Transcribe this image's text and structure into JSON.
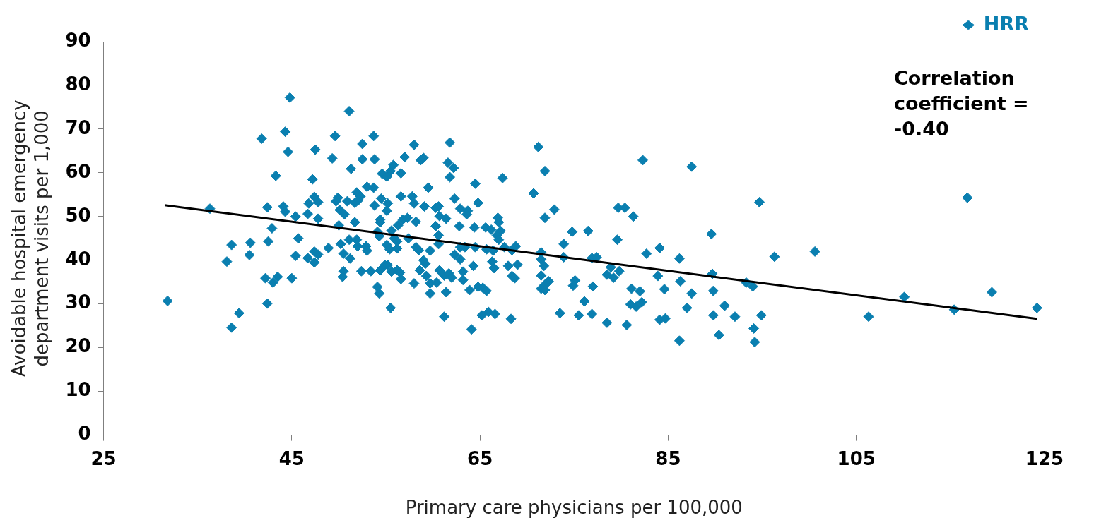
{
  "chart_data": {
    "type": "scatter",
    "xlabel": "Primary care physicians per 100,000",
    "ylabel": "Avoidable hospital emergency department visits per 1,000",
    "xlim": [
      25,
      125
    ],
    "xticks": [
      25,
      45,
      65,
      85,
      105,
      125
    ],
    "ylim": [
      0,
      90
    ],
    "yticks": [
      0,
      10,
      20,
      30,
      40,
      50,
      60,
      70,
      80,
      90
    ],
    "grid": false,
    "legend": "top right",
    "marker": "diamond",
    "annotations": [
      "Correlation coefficient = -0.40"
    ],
    "series": [
      {
        "name": "HRR",
        "color": "#0a7fb0",
        "x": [
          44.8,
          51.1,
          44.3,
          41.8,
          49.6,
          52.5,
          44.6,
          47.5,
          49.3,
          52.5,
          51.3,
          43.3,
          47.2,
          53.0,
          51.9,
          52.3,
          47.4,
          47.8,
          46.8,
          49.9,
          49.7,
          50.9,
          51.7,
          52.1,
          42.4,
          44.1,
          44.3,
          36.3,
          46.7,
          45.4,
          47.8,
          50.1,
          50.6,
          51.7,
          50.0,
          42.9,
          45.7,
          38.6,
          40.6,
          42.5,
          51.1,
          51.9,
          52.0,
          52.9,
          50.2,
          48.9,
          38.1,
          40.5,
          45.4,
          46.7,
          47.4,
          47.8,
          47.4,
          50.5,
          51.2,
          52.4,
          50.5,
          50.4,
          42.2,
          43.5,
          43.0,
          45.0,
          31.8,
          42.4,
          39.4,
          38.6,
          53.7,
          53.8,
          58.0,
          61.8,
          57.0,
          58.7,
          59.0,
          61.6,
          62.2,
          55.8,
          55.5,
          54.6,
          55.1,
          56.6,
          61.8,
          67.4,
          59.5,
          64.5,
          53.7,
          54.5,
          55.2,
          56.6,
          57.8,
          58.0,
          59.1,
          62.3,
          64.8,
          53.8,
          55.1,
          60.3,
          60.6,
          62.9,
          63.7,
          63.6,
          60.7,
          61.4,
          54.4,
          54.4,
          56.8,
          57.3,
          58.2,
          60.3,
          62.8,
          64.4,
          65.6,
          66.2,
          66.9,
          67.0,
          67.2,
          66.8,
          67.0,
          56.3,
          55.6,
          54.1,
          54.3,
          55.9,
          56.2,
          57.4,
          60.6,
          60.6,
          53.0,
          55.1,
          55.4,
          56.2,
          58.2,
          58.5,
          59.7,
          62.3,
          62.9,
          63.4,
          64.5,
          65.7,
          66.4,
          67.6,
          68.4,
          59.0,
          59.2,
          62.9,
          64.3,
          66.3,
          66.5,
          68.0,
          68.4,
          53.4,
          54.4,
          54.9,
          55.2,
          55.6,
          56.2,
          56.5,
          56.6,
          58.6,
          59.3,
          59.7,
          60.4,
          60.7,
          61.2,
          61.7,
          62.0,
          63.2,
          63.2,
          63.9,
          64.8,
          65.3,
          65.7,
          58.0,
          54.1,
          54.3,
          59.7,
          61.4,
          55.5,
          61.2,
          64.1,
          65.2,
          65.9,
          66.6,
          68.3,
          71.2,
          71.9,
          82.3,
          87.5,
          70.7,
          72.9,
          71.9,
          79.7,
          80.4,
          81.3,
          74.8,
          76.5,
          73.9,
          89.6,
          79.6,
          68.8,
          71.5,
          71.5,
          71.8,
          69.0,
          73.9,
          76.9,
          77.4,
          82.7,
          84.1,
          86.2,
          78.9,
          79.8,
          78.5,
          79.2,
          83.9,
          86.3,
          89.7,
          68.7,
          71.5,
          72.3,
          71.9,
          71.5,
          71.9,
          75.1,
          74.9,
          77.0,
          81.1,
          82.0,
          84.6,
          87.5,
          89.8,
          93.3,
          94.0,
          76.1,
          81.0,
          81.6,
          82.2,
          87.0,
          91.0,
          73.5,
          75.5,
          76.9,
          78.5,
          80.6,
          84.1,
          84.7,
          89.8,
          92.1,
          90.4,
          86.2,
          94.1,
          94.2,
          94.7,
          100.6,
          96.3,
          116.8,
          110.1,
          119.4,
          115.4,
          124.2,
          94.9,
          106.3
        ],
        "values": [
          77.2,
          74.1,
          69.4,
          67.8,
          68.4,
          66.6,
          64.8,
          65.3,
          63.3,
          63.1,
          60.9,
          59.3,
          58.5,
          56.8,
          55.5,
          54.6,
          54.5,
          53.3,
          53.0,
          54.3,
          53.5,
          53.5,
          53.1,
          53.8,
          52.1,
          52.3,
          51.1,
          51.8,
          50.6,
          50.0,
          49.5,
          51.5,
          50.5,
          48.7,
          48.0,
          47.3,
          45.0,
          43.5,
          44.0,
          44.3,
          44.7,
          44.7,
          43.2,
          43.2,
          43.7,
          42.8,
          39.7,
          41.2,
          41.0,
          40.5,
          42.0,
          41.3,
          39.5,
          41.5,
          40.4,
          37.5,
          37.5,
          36.2,
          35.9,
          36.2,
          34.9,
          35.9,
          30.7,
          30.1,
          27.9,
          24.6,
          68.4,
          63.1,
          66.4,
          66.9,
          63.6,
          62.9,
          63.4,
          62.3,
          61.1,
          61.8,
          60.4,
          59.8,
          59.1,
          59.9,
          59.0,
          58.8,
          56.6,
          57.5,
          56.6,
          54.1,
          53.0,
          54.6,
          54.6,
          53.0,
          52.3,
          54.1,
          53.1,
          52.5,
          51.3,
          52.0,
          52.3,
          51.8,
          51.3,
          50.5,
          50.1,
          49.5,
          49.3,
          48.7,
          49.3,
          49.7,
          48.8,
          47.8,
          47.8,
          47.5,
          47.5,
          47.0,
          49.7,
          48.7,
          46.7,
          45.7,
          44.7,
          48.0,
          46.8,
          46.5,
          45.5,
          45.0,
          44.3,
          45.0,
          45.7,
          43.7,
          42.2,
          43.5,
          42.5,
          42.7,
          43.0,
          42.3,
          42.2,
          41.3,
          43.0,
          43.0,
          43.0,
          42.5,
          42.2,
          43.0,
          42.3,
          40.0,
          39.2,
          40.2,
          38.7,
          39.7,
          38.2,
          38.7,
          36.4,
          37.5,
          37.7,
          38.9,
          38.9,
          37.4,
          37.7,
          37.2,
          35.7,
          37.7,
          36.4,
          34.7,
          34.9,
          37.7,
          36.5,
          37.0,
          36.0,
          37.4,
          35.5,
          33.2,
          33.9,
          33.7,
          33.0,
          34.7,
          33.9,
          32.4,
          32.4,
          32.7,
          29.1,
          27.1,
          24.2,
          27.4,
          28.2,
          27.7,
          26.6,
          65.9,
          60.4,
          62.9,
          61.4,
          55.3,
          51.6,
          49.7,
          52.0,
          52.0,
          50.0,
          46.5,
          46.7,
          43.7,
          46.0,
          44.7,
          43.2,
          41.8,
          40.2,
          38.7,
          39.0,
          40.7,
          40.5,
          40.7,
          41.5,
          42.8,
          40.4,
          38.4,
          37.5,
          36.7,
          36.0,
          36.4,
          35.2,
          36.9,
          35.9,
          36.5,
          35.2,
          34.4,
          33.5,
          33.2,
          35.4,
          34.2,
          34.0,
          33.5,
          32.9,
          33.4,
          32.4,
          33.0,
          34.9,
          34.0,
          30.6,
          29.9,
          29.4,
          30.4,
          29.1,
          29.6,
          27.9,
          27.4,
          27.7,
          25.7,
          25.2,
          26.4,
          26.7,
          27.4,
          27.1,
          22.9,
          21.6,
          24.4,
          21.3,
          53.3,
          42.0,
          40.8,
          54.3,
          31.6,
          32.7,
          28.7,
          29.1,
          27.4,
          27.1
        ]
      },
      {
        "type": "line",
        "color": "#000000",
        "marker": "none",
        "x": [
          31.5,
          124.2
        ],
        "values": [
          52.6,
          26.6
        ]
      }
    ]
  }
}
